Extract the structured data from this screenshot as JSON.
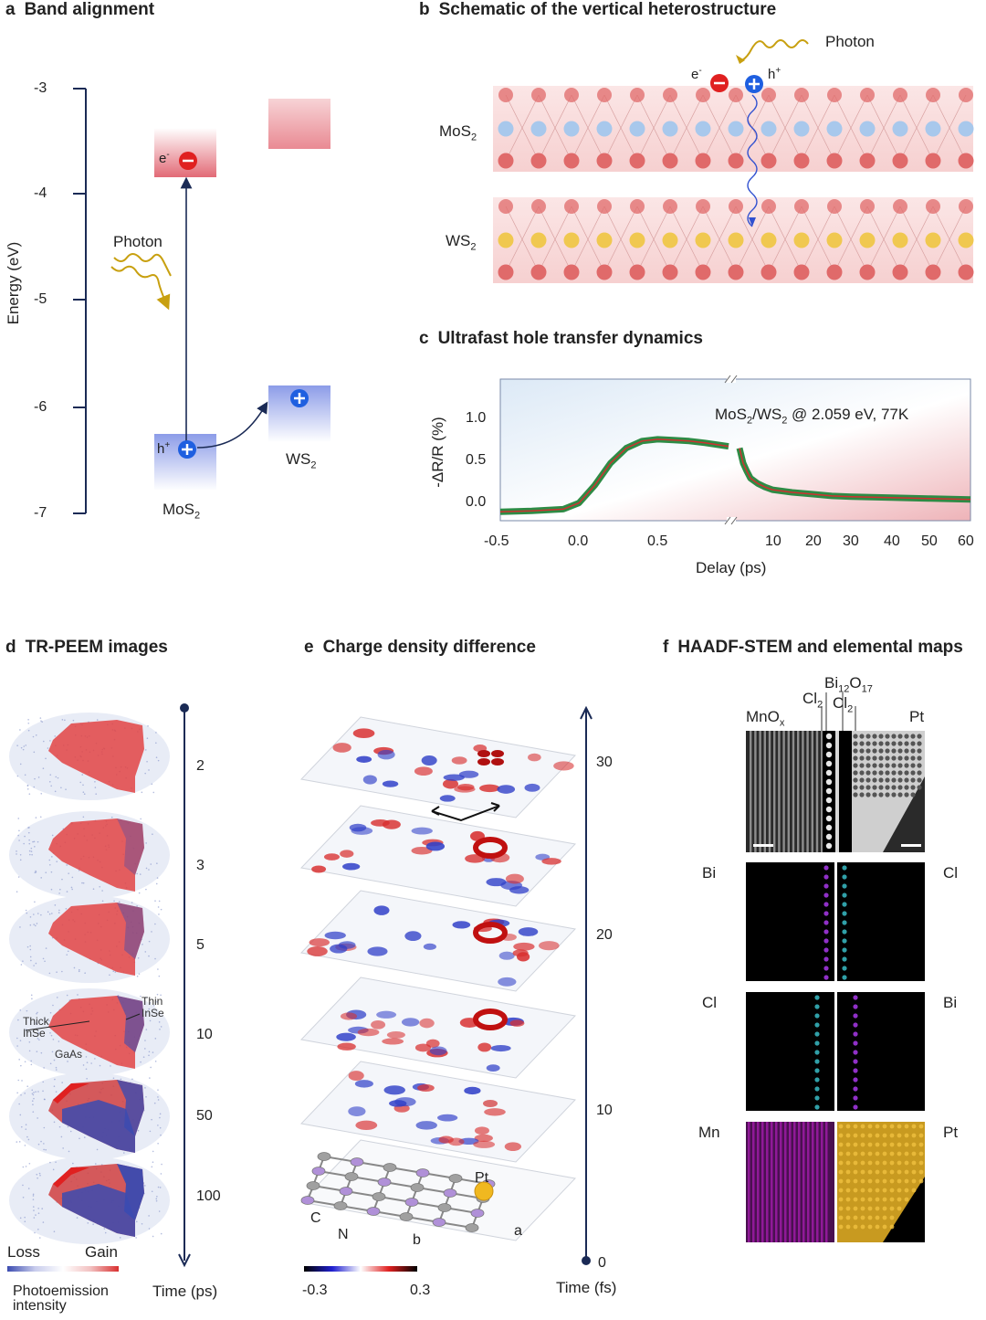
{
  "panels": {
    "a": {
      "letter": "a",
      "title": "Band alignment"
    },
    "b": {
      "letter": "b",
      "title": "Schematic of the vertical heterostructure"
    },
    "c": {
      "letter": "c",
      "title": "Ultrafast hole transfer dynamics"
    },
    "d": {
      "letter": "d",
      "title": "TR-PEEM images"
    },
    "e": {
      "letter": "e",
      "title": "Charge density difference"
    },
    "f": {
      "letter": "f",
      "title": "HAADF-STEM and elemental maps"
    }
  },
  "band": {
    "ylabel": "Energy (eV)",
    "yticks": [
      "-3",
      "-4",
      "-5",
      "-6",
      "-7"
    ],
    "photon": "Photon",
    "electron": "e",
    "electron_sup": "-",
    "hole": "h",
    "hole_sup": "+",
    "mos2": "MoS",
    "ws2": "WS",
    "sub2": "2",
    "colors": {
      "cb": "#e8808a",
      "vb": "#8f9fe6",
      "photon": "#c8a010",
      "electron": "#e02020",
      "hole": "#1f5fe0"
    }
  },
  "schematic": {
    "mos2": "MoS",
    "ws2": "WS",
    "sub2": "2",
    "photon": "Photon",
    "electron": "e",
    "electron_sup": "-",
    "hole": "h",
    "hole_sup": "+",
    "colors": {
      "s_atom": "#e06a6a",
      "mo_atom": "#a8c8ec",
      "w_atom": "#f0c850"
    }
  },
  "chart_data": {
    "type": "line",
    "ylabel": "-ΔR/R (%)",
    "xlabel": "Delay (ps)",
    "annotation": "MoS2/WS2 @ 2.059 eV, 77K",
    "annotation_parts": {
      "a": "MoS",
      "b": "2",
      "c": "/WS",
      "d": "2",
      "e": " @ 2.059 eV, 77K"
    },
    "yticks": [
      "1.0",
      "0.5",
      "0.0"
    ],
    "xticks_left": [
      "-0.5",
      "0.0",
      "0.5"
    ],
    "xticks_right": [
      "10",
      "20",
      "30",
      "40",
      "50",
      "60"
    ],
    "ylim": [
      -0.1,
      1.5
    ],
    "segments": [
      {
        "x_axis": "linear",
        "xlim": [
          -0.5,
          0.95
        ],
        "x": [
          -0.5,
          -0.3,
          -0.1,
          0.0,
          0.1,
          0.2,
          0.3,
          0.4,
          0.5,
          0.6,
          0.7,
          0.8,
          0.95
        ],
        "y": [
          0.0,
          0.01,
          0.03,
          0.1,
          0.3,
          0.55,
          0.72,
          0.8,
          0.82,
          0.81,
          0.8,
          0.78,
          0.74
        ]
      },
      {
        "x_axis": "linear",
        "xlim": [
          1,
          60
        ],
        "x": [
          1,
          2,
          3,
          4,
          6,
          8,
          10,
          15,
          20,
          25,
          30,
          40,
          50,
          60
        ],
        "y": [
          0.72,
          0.55,
          0.46,
          0.38,
          0.32,
          0.28,
          0.25,
          0.22,
          0.2,
          0.18,
          0.17,
          0.16,
          0.15,
          0.14
        ]
      }
    ],
    "series_colors": {
      "measured": "#2e8b45",
      "fit": "#d03030"
    }
  },
  "peem": {
    "times": [
      "2",
      "3",
      "5",
      "10",
      "50",
      "100"
    ],
    "axis_label": "Time (ps)",
    "loss": "Loss",
    "gain": "Gain",
    "colorbar_label": "Photoemission intensity",
    "annot_thin": "Thin InSe",
    "annot_thick": "Thick InSe",
    "annot_gaas": "GaAs"
  },
  "charge": {
    "times": [
      "30",
      "20",
      "10",
      "0"
    ],
    "axis_label": "Time (fs)",
    "cbar_min": "-0.3",
    "cbar_max": "0.3",
    "pt": "Pt",
    "c": "C",
    "n": "N",
    "a": "a",
    "b": "b"
  },
  "stem": {
    "header_mnox": "MnO",
    "header_mnox_sub": "x",
    "header_cl2_left": "Cl",
    "header_bi12o17": "Bi",
    "bi_sub": "12",
    "o_label": "O",
    "o_sub": "17",
    "header_cl2_right": "Cl",
    "cl_sub": "2",
    "header_pt": "Pt",
    "rows": [
      {
        "left": "Bi",
        "right": "Cl"
      },
      {
        "left": "Cl",
        "right": "Bi"
      },
      {
        "left": "Mn",
        "right": "Pt"
      }
    ]
  }
}
